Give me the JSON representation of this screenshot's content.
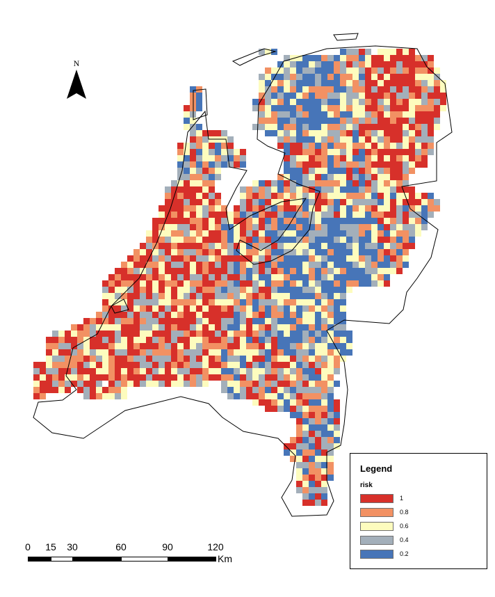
{
  "north_arrow": {
    "letter": "N"
  },
  "legend": {
    "title": "Legend",
    "field": "risk",
    "classes": [
      {
        "label": "1",
        "color": "#d7302a"
      },
      {
        "label": "0.8",
        "color": "#f29163"
      },
      {
        "label": "0.6",
        "color": "#fdfcbe"
      },
      {
        "label": "0.4",
        "color": "#a3afba"
      },
      {
        "label": "0.2",
        "color": "#4775b8"
      }
    ]
  },
  "scale_bar": {
    "ticks": [
      "0",
      "15",
      "30",
      "60",
      "90",
      "120"
    ],
    "unit": "Km"
  }
}
